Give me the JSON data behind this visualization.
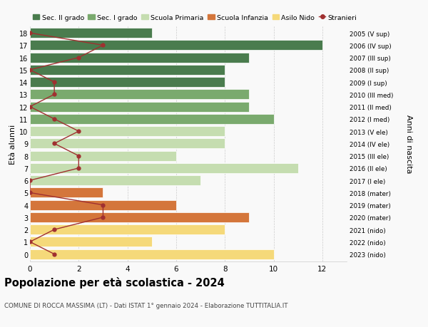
{
  "ages": [
    18,
    17,
    16,
    15,
    14,
    13,
    12,
    11,
    10,
    9,
    8,
    7,
    6,
    5,
    4,
    3,
    2,
    1,
    0
  ],
  "right_labels": [
    "2005 (V sup)",
    "2006 (IV sup)",
    "2007 (III sup)",
    "2008 (II sup)",
    "2009 (I sup)",
    "2010 (III med)",
    "2011 (II med)",
    "2012 (I med)",
    "2013 (V ele)",
    "2014 (IV ele)",
    "2015 (III ele)",
    "2016 (II ele)",
    "2017 (I ele)",
    "2018 (mater)",
    "2019 (mater)",
    "2020 (mater)",
    "2021 (nido)",
    "2022 (nido)",
    "2023 (nido)"
  ],
  "bar_values": [
    5,
    12,
    9,
    8,
    8,
    9,
    9,
    10,
    8,
    8,
    6,
    11,
    7,
    3,
    6,
    9,
    8,
    5,
    10
  ],
  "stranieri": [
    0,
    3,
    2,
    0,
    1,
    1,
    0,
    1,
    2,
    1,
    2,
    2,
    0,
    0,
    3,
    3,
    1,
    0,
    1
  ],
  "bar_colors": [
    "#4a7c4e",
    "#4a7c4e",
    "#4a7c4e",
    "#4a7c4e",
    "#4a7c4e",
    "#7aaa6e",
    "#7aaa6e",
    "#7aaa6e",
    "#c5ddb0",
    "#c5ddb0",
    "#c5ddb0",
    "#c5ddb0",
    "#c5ddb0",
    "#d4763b",
    "#d4763b",
    "#d4763b",
    "#f5d97a",
    "#f5d97a",
    "#f5d97a"
  ],
  "color_sec2": "#4a7c4e",
  "color_sec1": "#7aaa6e",
  "color_prim": "#c5ddb0",
  "color_infanzia": "#d4763b",
  "color_nido": "#f5d97a",
  "color_stranieri": "#a03030",
  "title": "Popolazione per età scolastica - 2024",
  "subtitle": "COMUNE DI ROCCA MASSIMA (LT) - Dati ISTAT 1° gennaio 2024 - Elaborazione TUTTITALIA.IT",
  "ylabel_left": "Età alunni",
  "ylabel_right": "Anni di nascita",
  "xlim": [
    0,
    13
  ],
  "background_color": "#f9f9f9",
  "legend_labels": [
    "Sec. II grado",
    "Sec. I grado",
    "Scuola Primaria",
    "Scuola Infanzia",
    "Asilo Nido",
    "Stranieri"
  ]
}
